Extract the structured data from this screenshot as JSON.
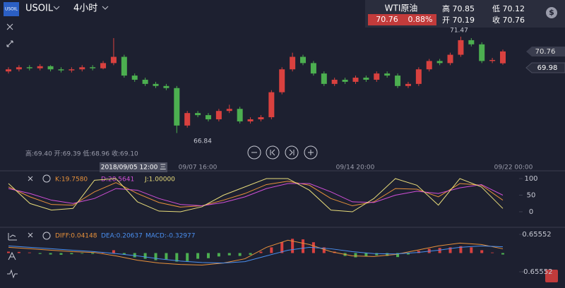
{
  "header": {
    "symbol_badge": "USOIL",
    "symbol": "USOIL",
    "interval": "4小时",
    "quote_name": "WTI原油",
    "price": "70.76",
    "change": "0.88%",
    "high": "高 70.85",
    "low": "低 70.12",
    "open": "开 70.19",
    "close": "收 70.76"
  },
  "main": {
    "ylim": [
      65.5,
      73.23
    ],
    "up_color": "#d9413f",
    "down_color": "#4caf50",
    "candles": [
      [
        69.8,
        70.0,
        69.7,
        69.9
      ],
      [
        69.9,
        70.1,
        69.8,
        70.0
      ],
      [
        70.0,
        70.1,
        69.85,
        69.95
      ],
      [
        69.95,
        70.15,
        69.85,
        70.05
      ],
      [
        70.05,
        70.1,
        69.8,
        69.9
      ],
      [
        69.9,
        70.0,
        69.75,
        69.85
      ],
      [
        69.85,
        70.0,
        69.75,
        69.9
      ],
      [
        69.9,
        70.1,
        69.8,
        70.0
      ],
      [
        70.0,
        70.1,
        69.85,
        69.95
      ],
      [
        69.95,
        70.3,
        69.9,
        70.2
      ],
      [
        70.2,
        71.4,
        70.1,
        70.5
      ],
      [
        70.5,
        70.6,
        69.5,
        69.6
      ],
      [
        69.6,
        69.7,
        69.3,
        69.4
      ],
      [
        69.4,
        69.5,
        69.1,
        69.2
      ],
      [
        69.2,
        69.3,
        69.0,
        69.1
      ],
      [
        69.1,
        69.2,
        68.9,
        69.0
      ],
      [
        69.0,
        69.1,
        66.84,
        67.2
      ],
      [
        67.2,
        67.9,
        67.1,
        67.8
      ],
      [
        67.8,
        67.9,
        67.6,
        67.7
      ],
      [
        67.7,
        67.8,
        67.4,
        67.5
      ],
      [
        67.5,
        68.0,
        67.4,
        67.9
      ],
      [
        67.9,
        68.2,
        67.8,
        68.0
      ],
      [
        68.0,
        68.1,
        67.3,
        67.4
      ],
      [
        67.4,
        67.6,
        67.3,
        67.5
      ],
      [
        67.5,
        67.7,
        67.4,
        67.6
      ],
      [
        67.6,
        68.9,
        67.5,
        68.8
      ],
      [
        68.8,
        70.0,
        68.7,
        69.9
      ],
      [
        69.9,
        70.7,
        69.8,
        70.5
      ],
      [
        70.5,
        70.6,
        70.1,
        70.2
      ],
      [
        70.2,
        70.3,
        69.6,
        69.7
      ],
      [
        69.7,
        69.8,
        69.1,
        69.2
      ],
      [
        69.2,
        69.5,
        69.1,
        69.4
      ],
      [
        69.4,
        69.5,
        69.2,
        69.3
      ],
      [
        69.3,
        69.6,
        69.2,
        69.5
      ],
      [
        69.5,
        69.6,
        69.3,
        69.4
      ],
      [
        69.4,
        69.8,
        69.3,
        69.7
      ],
      [
        69.7,
        69.8,
        69.5,
        69.6
      ],
      [
        69.6,
        69.7,
        69.0,
        69.1
      ],
      [
        69.1,
        69.3,
        69.0,
        69.2
      ],
      [
        69.2,
        70.0,
        69.1,
        69.9
      ],
      [
        69.9,
        70.4,
        69.8,
        70.3
      ],
      [
        70.3,
        70.4,
        70.1,
        70.2
      ],
      [
        70.2,
        70.7,
        70.1,
        70.6
      ],
      [
        70.6,
        71.47,
        70.5,
        71.3
      ],
      [
        71.3,
        71.4,
        71.0,
        71.1
      ],
      [
        71.1,
        71.2,
        70.2,
        70.3
      ],
      [
        70.3,
        70.45,
        70.2,
        70.35
      ],
      [
        70.19,
        70.85,
        70.12,
        70.76
      ]
    ],
    "high_marker": "71.47",
    "low_marker": "66.84",
    "price_tag": "70.76",
    "axis_price": "70.76",
    "second_tag": "69.98",
    "ohlc_info": "高:69.40 开:69.39 低:68.96 收:69.10",
    "date_labels": [
      "09/07 16:00",
      "09/14 20:00",
      "09/22 00:00"
    ],
    "cursor_date": "2018/09/05 12:00 三"
  },
  "kdj": {
    "ylim": [
      0,
      100
    ],
    "yticks": [
      0,
      50,
      100
    ],
    "series": [
      {
        "legend": "K:19.7580",
        "color": "#e8913a",
        "values": [
          75,
          45,
          22,
          20,
          60,
          88,
          55,
          28,
          14,
          18,
          35,
          55,
          82,
          92,
          80,
          40,
          18,
          30,
          70,
          68,
          45,
          85,
          80,
          35
        ]
      },
      {
        "legend": "D:28.5641",
        "color": "#d14fd8",
        "values": [
          70,
          55,
          35,
          25,
          40,
          70,
          65,
          40,
          22,
          18,
          28,
          45,
          70,
          85,
          85,
          60,
          30,
          28,
          50,
          62,
          55,
          72,
          82,
          50
        ]
      },
      {
        "legend": "J:1.00000",
        "color": "#e8dc7a",
        "values": [
          85,
          25,
          5,
          10,
          95,
          100,
          30,
          2,
          0,
          15,
          50,
          75,
          100,
          100,
          65,
          5,
          0,
          40,
          100,
          80,
          20,
          100,
          75,
          10
        ]
      }
    ]
  },
  "macd": {
    "ylim": [
      -0.65552,
      0.65552
    ],
    "yticks": [
      -0.65552,
      0.65552
    ],
    "hist": [
      0.05,
      0.04,
      0.02,
      -0.03,
      -0.05,
      -0.06,
      -0.04,
      -0.02,
      -0.03,
      0.02,
      0.1,
      -0.05,
      -0.15,
      -0.2,
      -0.25,
      -0.22,
      -0.3,
      -0.28,
      -0.2,
      -0.18,
      -0.12,
      -0.08,
      -0.1,
      -0.06,
      0.05,
      0.2,
      0.38,
      0.5,
      0.48,
      0.38,
      0.2,
      0.05,
      -0.1,
      -0.15,
      -0.12,
      -0.08,
      -0.1,
      -0.14,
      -0.05,
      0.08,
      0.15,
      0.18,
      0.2,
      0.24,
      0.2,
      0.1,
      0.02,
      -0.05
    ],
    "lines": [
      {
        "legend": "DIFF:0.04148",
        "color": "#e8913a",
        "values": [
          0.2,
          0.15,
          0.1,
          0.05,
          0.02,
          -0.1,
          -0.25,
          -0.35,
          -0.4,
          -0.42,
          -0.35,
          -0.2,
          0.2,
          0.45,
          0.3,
          0.05,
          -0.1,
          -0.12,
          -0.05,
          0.1,
          0.25,
          0.35,
          0.3,
          0.15
        ]
      },
      {
        "legend": "DEA:0.20637",
        "color": "#4a8ff0",
        "values": [
          0.25,
          0.2,
          0.15,
          0.1,
          0.05,
          -0.02,
          -0.1,
          -0.2,
          -0.28,
          -0.33,
          -0.35,
          -0.3,
          -0.1,
          0.1,
          0.2,
          0.15,
          0.05,
          -0.02,
          -0.03,
          0.02,
          0.1,
          0.2,
          0.25,
          0.22
        ]
      }
    ],
    "hist_legend": "MACD:-0.32977"
  }
}
